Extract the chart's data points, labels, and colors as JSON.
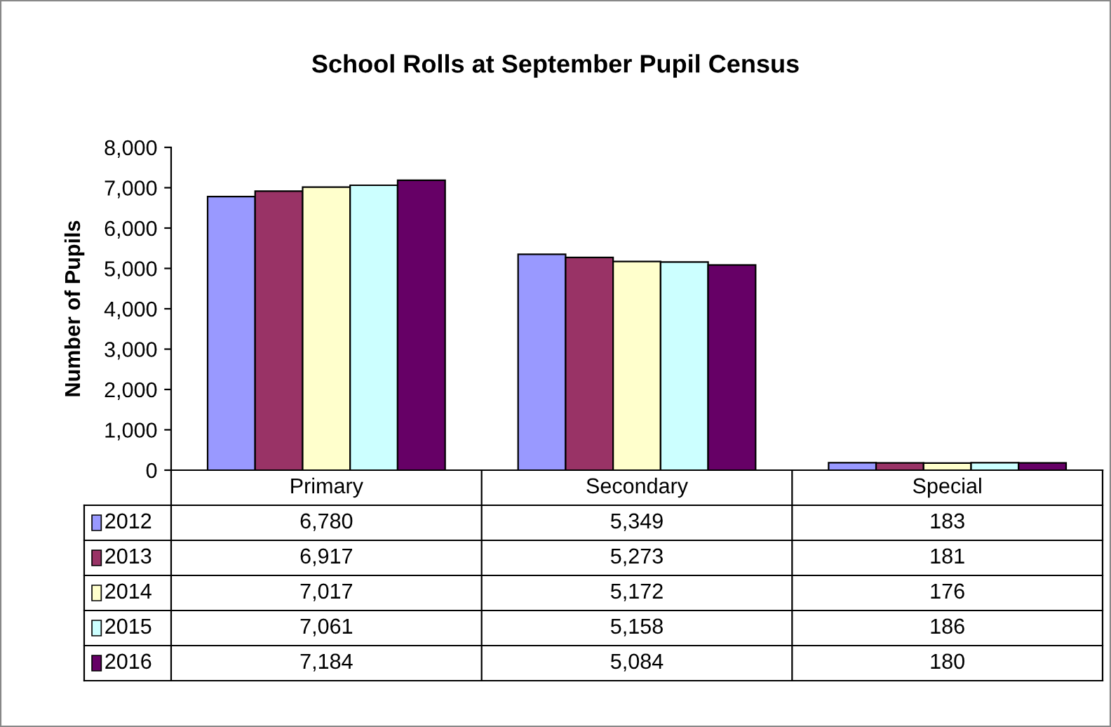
{
  "chart_data": {
    "type": "bar",
    "title": "School Rolls at September Pupil Census",
    "ylabel": "Number of Pupils",
    "categories": [
      "Primary",
      "Secondary",
      "Special"
    ],
    "series": [
      {
        "name": "2012",
        "color": "#9999ff",
        "values": [
          6780,
          5349,
          183
        ],
        "value_labels": [
          "6,780",
          "5,349",
          "183"
        ]
      },
      {
        "name": "2013",
        "color": "#993366",
        "values": [
          6917,
          5273,
          181
        ],
        "value_labels": [
          "6,917",
          "5,273",
          "181"
        ]
      },
      {
        "name": "2014",
        "color": "#ffffcc",
        "values": [
          7017,
          5172,
          176
        ],
        "value_labels": [
          "7,017",
          "5,172",
          "176"
        ]
      },
      {
        "name": "2015",
        "color": "#ccffff",
        "values": [
          7061,
          5158,
          186
        ],
        "value_labels": [
          "7,061",
          "5,158",
          "186"
        ]
      },
      {
        "name": "2016",
        "color": "#660066",
        "values": [
          7184,
          5084,
          180
        ],
        "value_labels": [
          "7,184",
          "5,084",
          "180"
        ]
      }
    ],
    "ylim": [
      0,
      8000
    ],
    "yticks": [
      {
        "value": 0,
        "label": "0"
      },
      {
        "value": 1000,
        "label": "1,000"
      },
      {
        "value": 2000,
        "label": "2,000"
      },
      {
        "value": 3000,
        "label": "3,000"
      },
      {
        "value": 4000,
        "label": "4,000"
      },
      {
        "value": 5000,
        "label": "5,000"
      },
      {
        "value": 6000,
        "label": "6,000"
      },
      {
        "value": 7000,
        "label": "7,000"
      },
      {
        "value": 8000,
        "label": "8,000"
      }
    ],
    "legend": "bottom",
    "grid": false
  }
}
